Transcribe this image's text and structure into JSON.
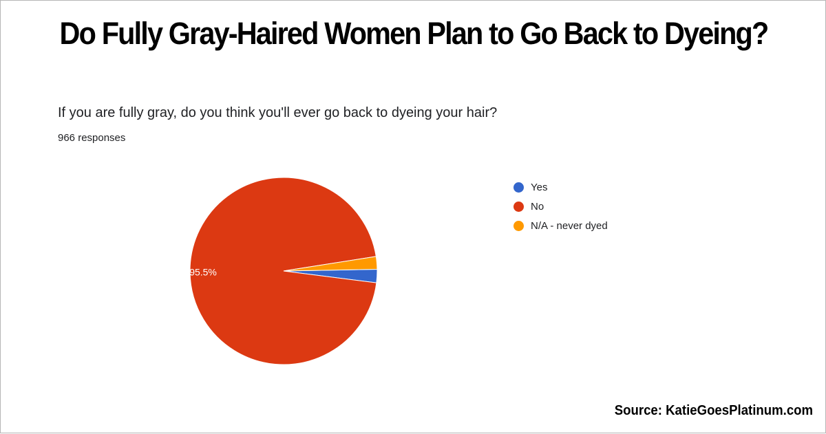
{
  "headline": "Do Fully Gray-Haired Women Plan to Go Back to Dyeing?",
  "source": "Source: KatieGoesPlatinum.com",
  "chart_data": {
    "type": "pie",
    "title": "If you are fully gray, do you think you'll ever go back to dyeing your hair?",
    "subtitle": "966 responses",
    "slices": [
      {
        "label": "Yes",
        "value": 2.3,
        "color": "#3366cc"
      },
      {
        "label": "No",
        "value": 95.5,
        "color": "#dc3912",
        "data_label": "95.5%"
      },
      {
        "label": "N/A - never dyed",
        "value": 2.2,
        "color": "#ff9900"
      }
    ],
    "legend_position": "right"
  }
}
